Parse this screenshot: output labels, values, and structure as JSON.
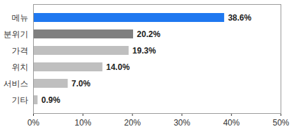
{
  "chart_data": {
    "type": "bar",
    "orientation": "horizontal",
    "categories": [
      "메뉴",
      "분위기",
      "가격",
      "위치",
      "서비스",
      "기타"
    ],
    "values": [
      38.6,
      20.2,
      19.3,
      14.0,
      7.0,
      0.9
    ],
    "value_labels": [
      "38.6%",
      "20.2%",
      "19.3%",
      "14.0%",
      "7.0%",
      "0.9%"
    ],
    "colors": [
      "#1f78f0",
      "#7f7f7f",
      "#bfbfbf",
      "#bfbfbf",
      "#bfbfbf",
      "#bfbfbf"
    ],
    "data_labels": true,
    "xlim": [
      0,
      50
    ],
    "xticks": [
      {
        "value": 0,
        "label": "0%"
      },
      {
        "value": 10,
        "label": "10%"
      },
      {
        "value": 20,
        "label": "20%"
      },
      {
        "value": 30,
        "label": "30%"
      },
      {
        "value": 40,
        "label": "40%"
      },
      {
        "value": 50,
        "label": "50%"
      }
    ],
    "grid": false
  }
}
